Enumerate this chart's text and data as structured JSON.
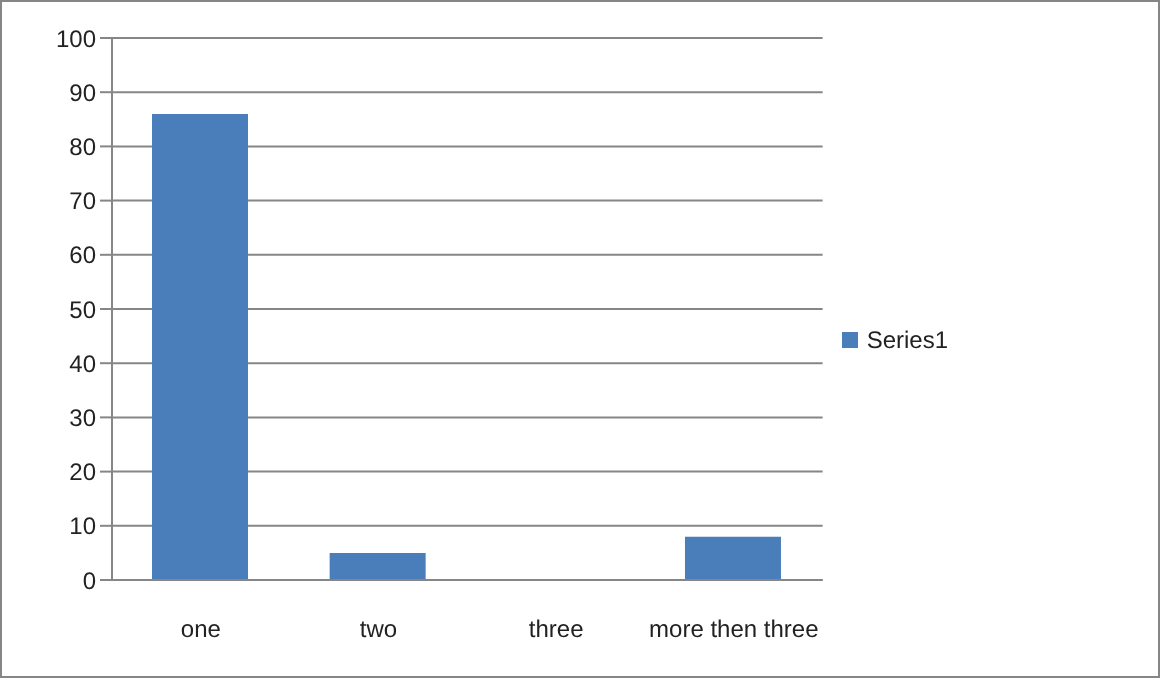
{
  "chart_data": {
    "type": "bar",
    "categories": [
      "one",
      "two",
      "three",
      "more then three"
    ],
    "series": [
      {
        "name": "Series1",
        "color": "#4a7ebb",
        "values": [
          86,
          5,
          0,
          8
        ]
      }
    ],
    "ylim": [
      0,
      100
    ],
    "yticks": [
      0,
      10,
      20,
      30,
      40,
      50,
      60,
      70,
      80,
      90,
      100
    ],
    "grid": "y",
    "legend": "right"
  }
}
